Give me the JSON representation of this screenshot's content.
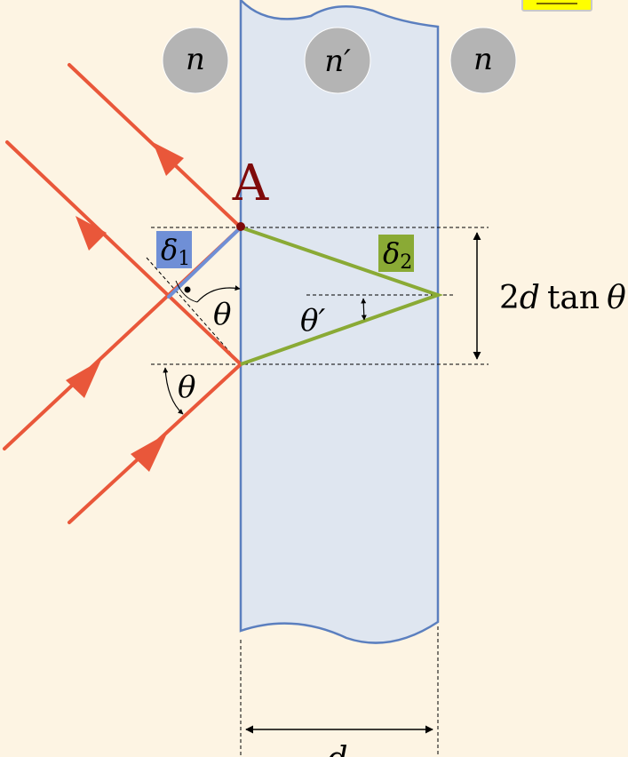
{
  "diagram": {
    "colors": {
      "background": "#fdf4e3",
      "slab_fill": "#dfe6f0",
      "slab_stroke": "#5b7fbf",
      "ray": "#e9573a",
      "green_path": "#8aaa35",
      "blue_path": "#6f8fd6",
      "point": "#7f0a0a",
      "circle_fill": "#b4b4b4",
      "corner_icon": "#ffff00"
    },
    "media": {
      "left": "n",
      "slab": "n′",
      "right": "n"
    },
    "point_label": "A",
    "delta1": {
      "symbol": "δ",
      "subscript": "1"
    },
    "delta2": {
      "symbol": "δ",
      "subscript": "2"
    },
    "angle_theta": "θ",
    "angle_theta_prime": "θ′",
    "offset_label": {
      "number": "2",
      "var": "d",
      "func": "tan",
      "angle": "θ"
    },
    "thickness_label": "d"
  }
}
